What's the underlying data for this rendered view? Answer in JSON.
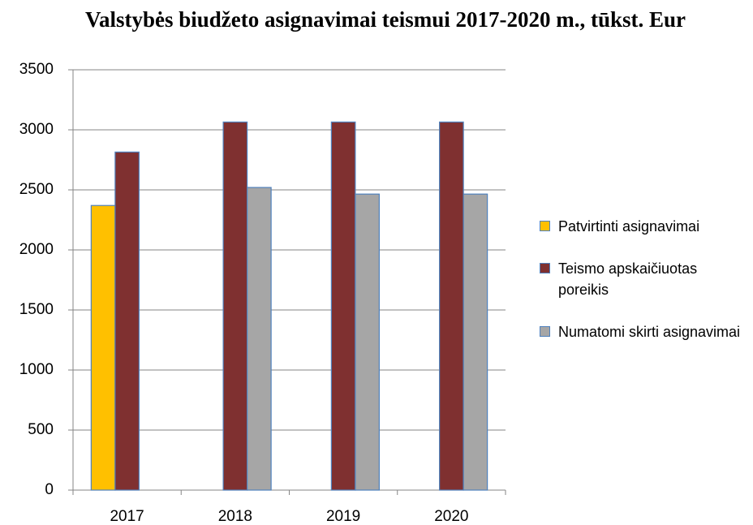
{
  "chart_data": {
    "type": "bar",
    "title": "Valstybės biudžeto asignavimai teismui 2017-2020 m., tūkst. Eur",
    "categories": [
      "2017",
      "2018",
      "2019",
      "2020"
    ],
    "series": [
      {
        "name": "Patvirtinti asignavimai",
        "color": "#ffc000",
        "values": [
          2370,
          null,
          null,
          null
        ]
      },
      {
        "name": "Teismo apskaičiuotas poreikis",
        "color": "#7f3030",
        "values": [
          2815,
          3065,
          3065,
          3065
        ]
      },
      {
        "name": "Numatomi skirti asignavimai",
        "color": "#a6a6a6",
        "values": [
          null,
          2520,
          2465,
          2465
        ]
      }
    ],
    "ylim": [
      0,
      3500
    ],
    "yticks": [
      0,
      500,
      1000,
      1500,
      2000,
      2500,
      3000,
      3500
    ],
    "grid": true,
    "legend": "right"
  }
}
